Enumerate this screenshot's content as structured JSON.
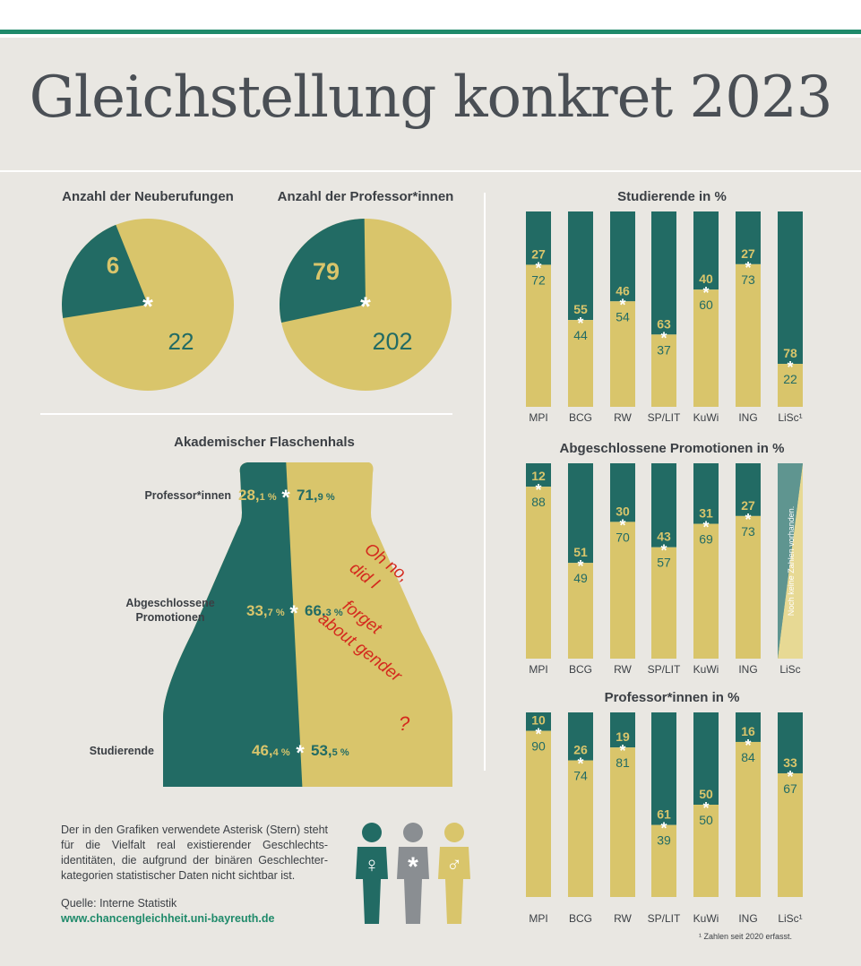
{
  "title": "Gleichstellung konkret 2023",
  "colors": {
    "teal": "#226b64",
    "gold": "#d9c56b",
    "green_line": "#1f8a6a",
    "grey": "#8a8e92",
    "bg": "#e9e7e2"
  },
  "pie_charts": {
    "neuberufungen": {
      "title": "Anzahl der Neuberufungen",
      "teal_value": "6",
      "gold_value": "22"
    },
    "professorinnen": {
      "title": "Anzahl der Professor*innen",
      "teal_value": "79",
      "gold_value": "202"
    }
  },
  "bottleneck": {
    "title": "Akademischer Flaschenhals",
    "rows": [
      {
        "label": "Professor*innen",
        "left_int": "28,",
        "left_dec": "1 %",
        "right_int": "71,",
        "right_dec": "9 %"
      },
      {
        "label": "Abgeschlossene Promotionen",
        "left_int": "33,",
        "left_dec": "7 %",
        "right_int": "66,",
        "right_dec": "3 %"
      },
      {
        "label": "Studierende",
        "left_int": "46,",
        "left_dec": "4 %",
        "right_int": "53,",
        "right_dec": "5 %"
      }
    ],
    "annotation": [
      "Oh no,",
      "did I",
      "forget",
      "about gender",
      "?"
    ]
  },
  "note": "Der in den Grafiken verwendete Asterisk (Stern) steht für die Vielfalt real existierender Geschlechts-identitäten, die aufgrund der binären Geschlechter-kategorien statistischer Daten nicht sichtbar ist.",
  "source": "Quelle: Interne Statistik",
  "url": "www.chancengleichheit.uni-bayreuth.de",
  "figure_symbols": {
    "female": "♀",
    "diverse": "*",
    "male": "♂"
  },
  "footnote": "¹ Zahlen seit 2020 erfasst.",
  "chart_data": [
    {
      "type": "pie",
      "title": "Anzahl der Neuberufungen",
      "labels": [
        "teal",
        "gold"
      ],
      "values": [
        6,
        22
      ]
    },
    {
      "type": "pie",
      "title": "Anzahl der Professor*innen",
      "labels": [
        "teal",
        "gold"
      ],
      "values": [
        79,
        202
      ]
    },
    {
      "type": "bar",
      "title": "Akademischer Flaschenhals",
      "categories": [
        "Professor*innen",
        "Abgeschlossene Promotionen",
        "Studierende"
      ],
      "series": [
        {
          "values": [
            28.1,
            33.7,
            46.4
          ]
        },
        {
          "values": [
            71.9,
            66.3,
            53.5
          ]
        }
      ]
    },
    {
      "type": "bar",
      "title": "Studierende in %",
      "categories": [
        "MPI",
        "BCG",
        "RW",
        "SP/LIT",
        "KuWi",
        "ING",
        "LiSc¹"
      ],
      "series": [
        {
          "values": [
            27,
            55,
            46,
            63,
            40,
            27,
            78
          ]
        },
        {
          "values": [
            72,
            44,
            54,
            37,
            60,
            73,
            22
          ]
        }
      ],
      "ylim": [
        0,
        100
      ]
    },
    {
      "type": "bar",
      "title": "Abgeschlossene Promotionen in %",
      "categories": [
        "MPI",
        "BCG",
        "RW",
        "SP/LIT",
        "KuWi",
        "ING",
        "LiSc"
      ],
      "series": [
        {
          "values": [
            12,
            51,
            30,
            43,
            31,
            27,
            null
          ]
        },
        {
          "values": [
            88,
            49,
            70,
            57,
            69,
            73,
            null
          ]
        }
      ],
      "ylim": [
        0,
        100
      ],
      "annotations": [
        "Noch keine Zahlen vorhanden."
      ]
    },
    {
      "type": "bar",
      "title": "Professor*innen in %",
      "categories": [
        "MPI",
        "BCG",
        "RW",
        "SP/LIT",
        "KuWi",
        "ING",
        "LiSc¹"
      ],
      "series": [
        {
          "values": [
            10,
            26,
            19,
            61,
            50,
            16,
            33
          ]
        },
        {
          "values": [
            90,
            74,
            81,
            39,
            50,
            84,
            67
          ]
        }
      ],
      "ylim": [
        0,
        100
      ]
    }
  ]
}
